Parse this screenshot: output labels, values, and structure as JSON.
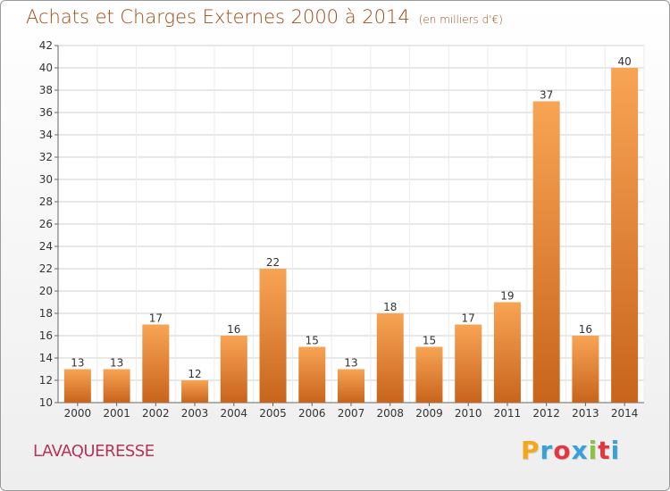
{
  "title": "Achats et Charges Externes 2000 à 2014",
  "subtitle": "(en milliers d'€)",
  "commune": "LAVAQUERESSE",
  "logo": {
    "letters": [
      "P",
      "r",
      "o",
      "x",
      "i",
      "t",
      "i"
    ],
    "colors": [
      "#f5a71b",
      "#3aa0d8",
      "#e2373f",
      "#3aa0d8",
      "#8bc23f",
      "#e2373f",
      "#3aa0d8"
    ]
  },
  "colors": {
    "bar_top": "#f8a455",
    "bar_bottom": "#c8641c",
    "title": "#a04a14",
    "commune": "#b8325a",
    "grid": "#d0d0d0"
  },
  "chart_data": {
    "type": "bar",
    "title": "Achats et Charges Externes 2000 à 2014",
    "subtitle": "(en milliers d'€)",
    "categories": [
      "2000",
      "2001",
      "2002",
      "2003",
      "2004",
      "2005",
      "2006",
      "2007",
      "2008",
      "2009",
      "2010",
      "2011",
      "2012",
      "2013",
      "2014"
    ],
    "values": [
      13,
      13,
      17,
      12,
      16,
      22,
      15,
      13,
      18,
      15,
      17,
      19,
      37,
      16,
      40
    ],
    "ylim": [
      10,
      42
    ],
    "yticks": [
      10,
      12,
      14,
      16,
      18,
      20,
      22,
      24,
      26,
      28,
      30,
      32,
      34,
      36,
      38,
      40,
      42
    ],
    "grid": true,
    "data_labels": true,
    "xlabel": "",
    "ylabel": ""
  }
}
